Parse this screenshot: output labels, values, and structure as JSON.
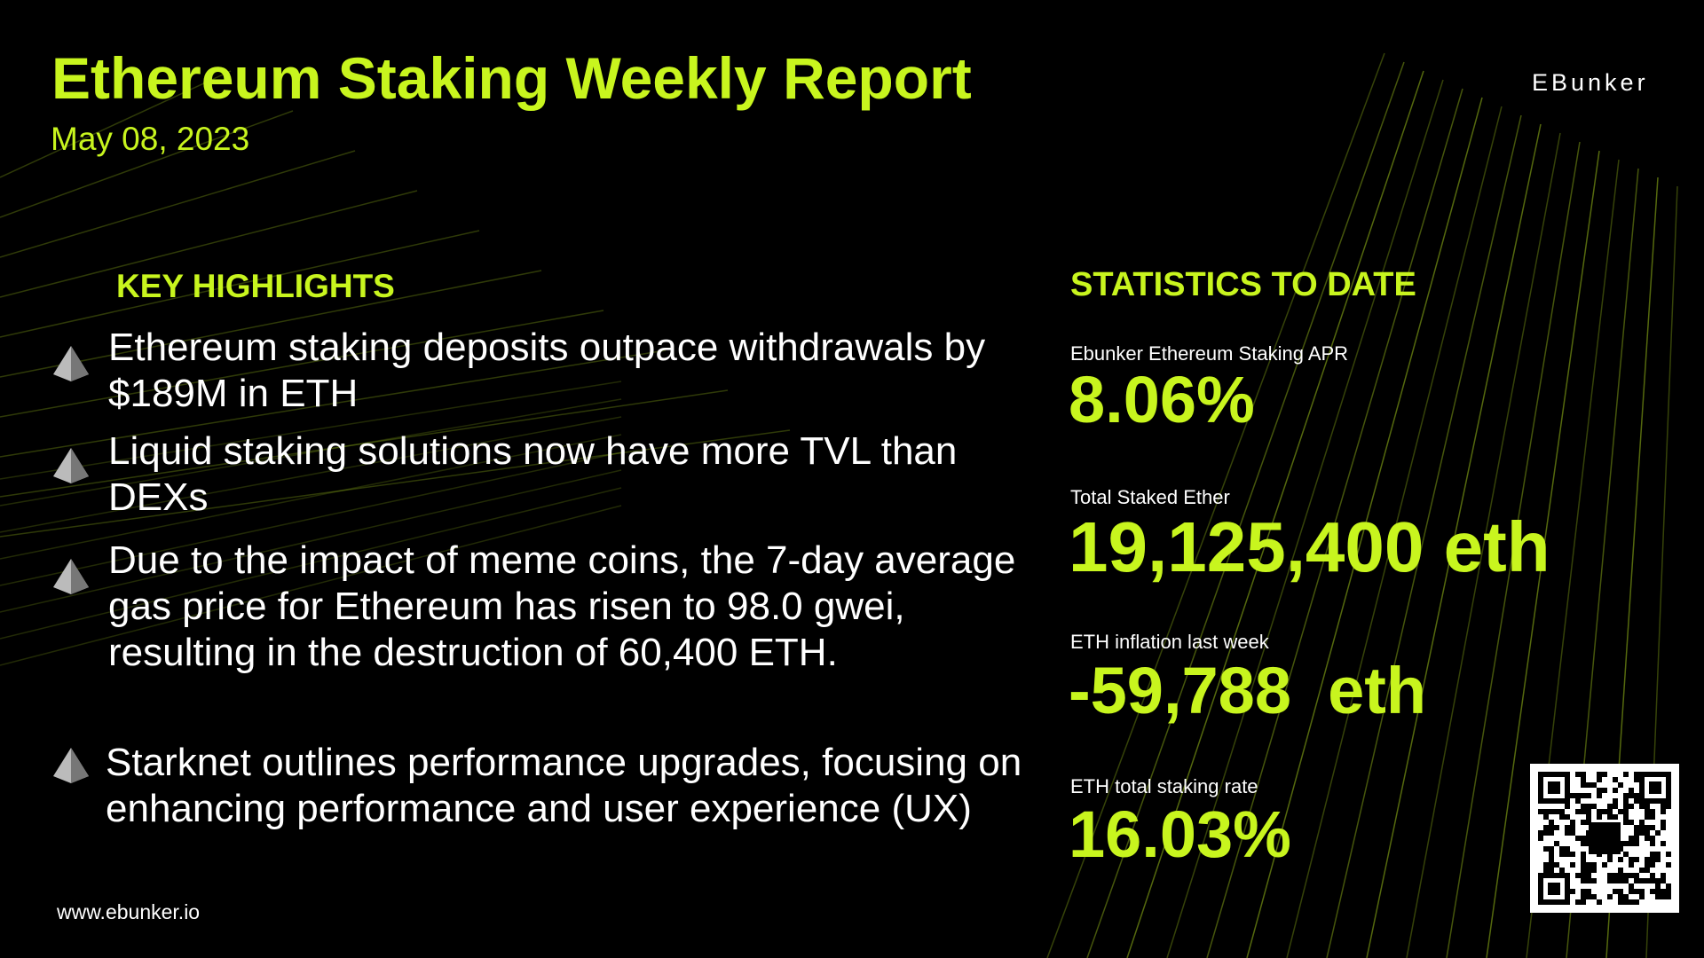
{
  "header": {
    "title": "Ethereum Staking Weekly Report",
    "date": "May 08, 2023",
    "logo": "EBunker"
  },
  "highlights": {
    "heading": "KEY HIGHLIGHTS",
    "items": [
      "Ethereum staking deposits outpace withdrawals by $189M in ETH",
      "Liquid staking solutions now have more TVL than DEXs",
      "Due to the impact of meme coins, the 7-day average gas price for Ethereum has risen to 98.0 gwei, resulting in the destruction of 60,400 ETH.",
      "Starknet outlines performance upgrades, focusing on enhancing performance and user experience (UX)"
    ]
  },
  "statistics": {
    "heading": "STATISTICS TO DATE",
    "items": [
      {
        "label": "Ebunker Ethereum Staking APR",
        "value": "8.06%"
      },
      {
        "label": "Total Staked Ether",
        "value": "19,125,400 eth"
      },
      {
        "label": "ETH inflation last week",
        "value": "-59,788  eth"
      },
      {
        "label": "ETH total staking rate",
        "value": "16.03%"
      }
    ]
  },
  "footer": {
    "url": "www.ebunker.io"
  }
}
